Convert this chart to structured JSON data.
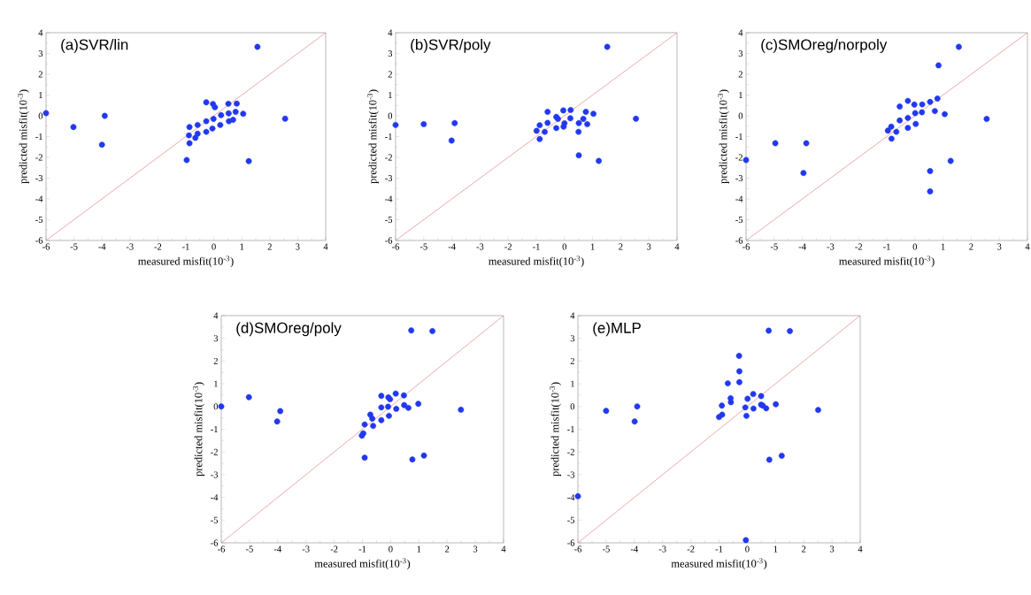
{
  "chart_data": [
    {
      "type": "scatter",
      "title": "(a)SVR/lin",
      "xlabel": "measured misfit(10$^{-3}$)",
      "ylabel": "predicted misfit(10$^{-3}$)",
      "xlim": [
        -6,
        4
      ],
      "ylim": [
        -6,
        4
      ],
      "xticks": [
        -6,
        -5,
        -4,
        -3,
        -2,
        -1,
        0,
        1,
        2,
        3,
        4
      ],
      "yticks": [
        -6,
        -5,
        -4,
        -3,
        -2,
        -1,
        0,
        1,
        2,
        3,
        4
      ],
      "series": [
        {
          "marker": "circle",
          "color": "#2238f0",
          "x": [
            -6,
            -5.02,
            -3.9,
            -4.0,
            1.56,
            2.55,
            1.25,
            -0.97,
            -0.87,
            -0.89,
            -0.87,
            -0.66,
            -0.58,
            -0.58,
            -0.27,
            -0.27,
            -0.27,
            -0.03,
            0.04,
            -0.01,
            -0.05,
            0.23,
            0.26,
            0.52,
            0.82,
            0.53,
            0.54,
            0.69,
            0.78,
            1.05
          ],
          "values": [
            0.13,
            -0.54,
            0,
            -1.39,
            3.32,
            -0.14,
            -2.18,
            -2.13,
            -0.54,
            -0.94,
            -1.32,
            -1.06,
            -0.86,
            -0.44,
            0.65,
            -0.77,
            -0.26,
            0.57,
            0.41,
            -0.15,
            -0.61,
            -0.44,
            0.03,
            0.58,
            0.59,
            0.12,
            -0.26,
            -0.19,
            0.19,
            0.1
          ]
        },
        {
          "type": "line",
          "marker": "none",
          "color": "#e07070",
          "x": [
            -6,
            4
          ],
          "values": [
            -6,
            4
          ]
        }
      ]
    },
    {
      "type": "scatter",
      "title": "(b)SVR/poly",
      "xlabel": "measured misfit(10$^{-3}$)",
      "ylabel": "predicted misfit(10$^{-3}$)",
      "xlim": [
        -6,
        4
      ],
      "ylim": [
        -6,
        4
      ],
      "xticks": [
        -6,
        -5,
        -4,
        -3,
        -2,
        -1,
        0,
        1,
        2,
        3,
        4
      ],
      "yticks": [
        -6,
        -5,
        -4,
        -3,
        -2,
        -1,
        0,
        1,
        2,
        3,
        4
      ],
      "series": [
        {
          "marker": "circle",
          "color": "#2238f0",
          "x": [
            -6,
            -5.0,
            -3.9,
            -4.01,
            1.52,
            2.54,
            1.22,
            0.51,
            0.5,
            -0.99,
            -0.88,
            -0.88,
            -0.7,
            -0.6,
            -0.6,
            -0.29,
            -0.29,
            -0.23,
            -0.04,
            -0.03,
            0,
            0.22,
            0.21,
            0.51,
            0.67,
            0.76,
            0.81,
            1.03
          ],
          "values": [
            -0.44,
            -0.4,
            -0.35,
            -1.19,
            3.32,
            -0.14,
            -2.17,
            -1.9,
            -0.77,
            -0.72,
            -0.45,
            -1.12,
            -0.77,
            0.19,
            -0.34,
            -0.05,
            -0.59,
            -0.15,
            0.26,
            -0.52,
            -0.36,
            0.28,
            -0.12,
            -0.35,
            -0.15,
            0.19,
            -0.4,
            0.1
          ]
        },
        {
          "type": "line",
          "marker": "none",
          "color": "#e07070",
          "x": [
            -6,
            4
          ],
          "values": [
            -6,
            4
          ]
        }
      ]
    },
    {
      "type": "scatter",
      "title": "(c)SMOreg/norpoly",
      "xlabel": "measured misfit(10$^{-3}$)",
      "ylabel": "predicted misfit(10$^{-3}$)",
      "xlim": [
        -6,
        4
      ],
      "ylim": [
        -6,
        4
      ],
      "xticks": [
        -6,
        -5,
        -4,
        -3,
        -2,
        -1,
        0,
        1,
        2,
        3,
        4
      ],
      "yticks": [
        -6,
        -5,
        -4,
        -3,
        -2,
        -1,
        0,
        1,
        2,
        3,
        4
      ],
      "series": [
        {
          "marker": "circle",
          "color": "#2238f0",
          "x": [
            -6,
            -4.96,
            -3.86,
            -3.96,
            1.56,
            0.84,
            2.55,
            1.27,
            0.54,
            0.54,
            -0.96,
            -0.84,
            -0.83,
            -0.66,
            -0.54,
            -0.54,
            -0.25,
            -0.25,
            -0.25,
            -0.02,
            0.01,
            0.03,
            0.26,
            0.25,
            0.54,
            0.8,
            0.71,
            1.06
          ],
          "values": [
            -2.13,
            -1.32,
            -1.32,
            -2.75,
            3.32,
            2.43,
            -0.15,
            -2.17,
            -2.66,
            -3.64,
            -0.71,
            -0.52,
            -1.1,
            -0.77,
            0.45,
            -0.22,
            0.72,
            -0.1,
            -0.58,
            0.54,
            0.13,
            -0.39,
            0.55,
            0.17,
            0.67,
            0.83,
            0.23,
            0.08
          ]
        },
        {
          "type": "line",
          "marker": "none",
          "color": "#e07070",
          "x": [
            -6,
            4
          ],
          "values": [
            -6,
            4
          ]
        }
      ]
    },
    {
      "type": "scatter",
      "title": "(d)SMOreg/poly",
      "xlabel": "measured misfit(10$^{-3}$)",
      "ylabel": "predicted misfit(10$^{-3}$)",
      "xlim": [
        -6,
        4
      ],
      "ylim": [
        -6,
        4
      ],
      "xticks": [
        -6,
        -5,
        -4,
        -3,
        -2,
        -1,
        0,
        1,
        2,
        3,
        4
      ],
      "yticks": [
        -6,
        -5,
        -4,
        -3,
        -2,
        -1,
        0,
        1,
        2,
        3,
        4
      ],
      "series": [
        {
          "marker": "circle",
          "color": "#2238f0",
          "x": [
            -6,
            -5.02,
            -3.91,
            -4.02,
            0.73,
            1.48,
            2.49,
            1.18,
            0.77,
            -0.92,
            -1.02,
            -0.97,
            -0.92,
            -0.72,
            -0.62,
            -0.65,
            -0.33,
            -0.33,
            -0.33,
            -0.08,
            -0.02,
            -0.09,
            -0.06,
            0.18,
            0.2,
            0.47,
            0.48,
            0.63,
            0.98
          ],
          "values": [
            0,
            0.41,
            -0.2,
            -0.66,
            3.35,
            3.32,
            -0.14,
            -2.16,
            -2.33,
            -2.25,
            -1.28,
            -1.18,
            -0.79,
            -0.36,
            -0.85,
            -0.53,
            0.47,
            -0.04,
            -0.6,
            0.4,
            0.32,
            -0.01,
            -0.41,
            0.57,
            -0.1,
            0.49,
            0.06,
            -0.06,
            0.12
          ]
        },
        {
          "type": "line",
          "marker": "none",
          "color": "#e07070",
          "x": [
            -6,
            4
          ],
          "values": [
            -6,
            4
          ]
        }
      ]
    },
    {
      "type": "scatter",
      "title": "(e)MLP",
      "xlabel": "measured misfit(10$^{-3}$)",
      "ylabel": "predicted misfit(10$^{-3}$)",
      "xlim": [
        -6,
        4
      ],
      "ylim": [
        -6,
        4
      ],
      "xticks": [
        -6,
        -5,
        -4,
        -3,
        -2,
        -1,
        0,
        1,
        2,
        3,
        4
      ],
      "yticks": [
        -6,
        -5,
        -4,
        -3,
        -2,
        -1,
        0,
        1,
        2,
        3,
        4
      ],
      "series": [
        {
          "marker": "circle",
          "color": "#2238f0",
          "x": [
            -6,
            -5.0,
            -3.9,
            -3.99,
            0.76,
            1.51,
            2.51,
            1.22,
            0.78,
            -0.05,
            -0.29,
            -0.28,
            -0.28,
            -0.69,
            -0.59,
            -0.58,
            -0.9,
            -0.89,
            -1.0,
            -0.07,
            -0.03,
            0.01,
            0.21,
            0.22,
            0.49,
            0.49,
            0.55,
            0.67,
            1.01
          ],
          "values": [
            -3.95,
            -0.19,
            0,
            -0.66,
            3.34,
            3.32,
            -0.15,
            -2.17,
            -2.34,
            -5.88,
            2.23,
            1.55,
            1.07,
            1.02,
            0.36,
            0.19,
            0.04,
            -0.36,
            -0.46,
            -0.04,
            -0.41,
            0.34,
            0.55,
            -0.09,
            0.46,
            0.08,
            0.04,
            -0.08,
            0.1
          ]
        },
        {
          "type": "line",
          "marker": "none",
          "color": "#e07070",
          "x": [
            -6,
            4
          ],
          "values": [
            -6,
            4
          ]
        }
      ]
    }
  ]
}
